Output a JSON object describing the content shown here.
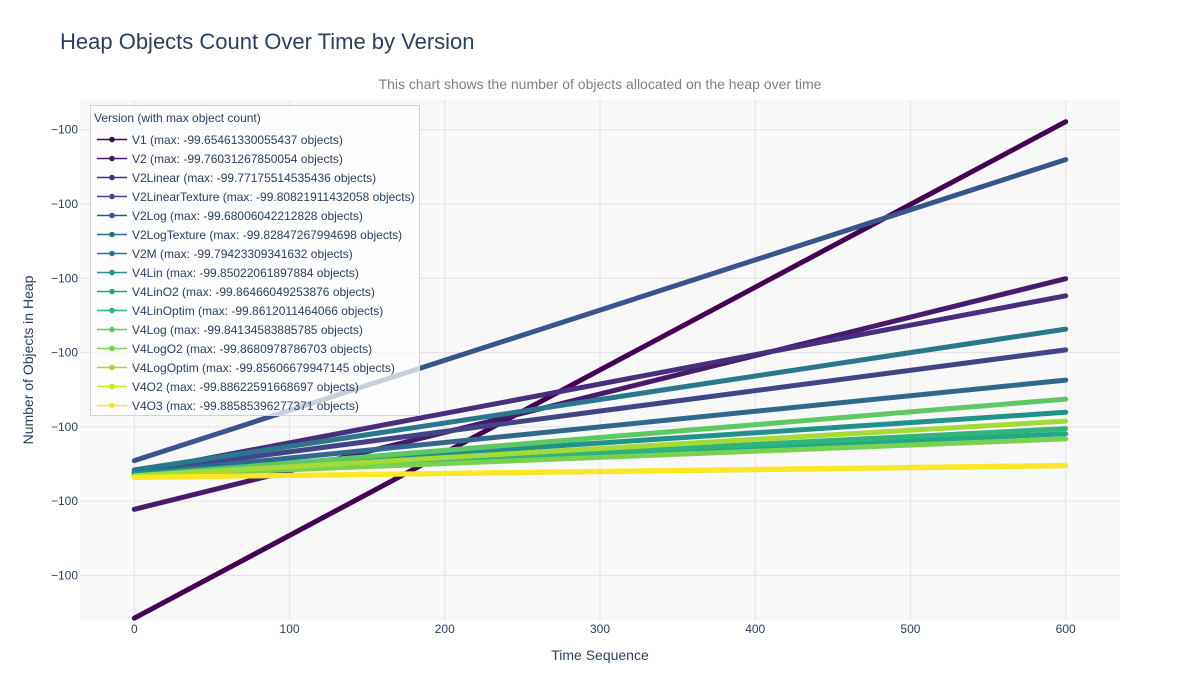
{
  "chart_data": {
    "type": "line",
    "title": "Heap Objects Count Over Time by Version",
    "subtitle": "This chart shows the number of objects allocated on the heap over time",
    "xlabel": "Time Sequence",
    "ylabel": "Number of Objects in Heap",
    "xlim": [
      -35,
      635
    ],
    "ylim": [
      -99.99,
      -99.64
    ],
    "x_ticks": [
      0,
      100,
      200,
      300,
      400,
      500,
      600
    ],
    "y_ticks": [
      -99.66,
      -99.71,
      -99.76,
      -99.81,
      -99.86,
      -99.91,
      -99.96
    ],
    "y_tick_labels": [
      "−100",
      "−100",
      "−100",
      "−100",
      "−100",
      "−100",
      "−100"
    ],
    "grid": true,
    "legend": {
      "title": "Version (with max object count)",
      "placement": "top-left"
    },
    "x": [
      0,
      600
    ],
    "series": [
      {
        "name": "V1 (max: -99.65461330055437 objects)",
        "color": "#440154",
        "values": [
          -99.9888,
          -99.6546
        ]
      },
      {
        "name": "V2 (max: -99.76031267850054 objects)",
        "color": "#481a6c",
        "values": [
          -99.9155,
          -99.7603
        ]
      },
      {
        "name": "V2Linear (max: -99.77175514535436 objects)",
        "color": "#472f7d",
        "values": [
          -99.8905,
          -99.7718
        ]
      },
      {
        "name": "V2LinearTexture (max: -99.80821911432058 objects)",
        "color": "#414487",
        "values": [
          -99.8905,
          -99.8082
        ]
      },
      {
        "name": "V2Log (max: -99.68006042212828 objects)",
        "color": "#39568c",
        "values": [
          -99.8827,
          -99.6801
        ]
      },
      {
        "name": "V2LogTexture (max: -99.82847267994698 objects)",
        "color": "#31688e",
        "values": [
          -99.8915,
          -99.8285
        ]
      },
      {
        "name": "V2M (max: -99.79423309341632 objects)",
        "color": "#2a788e",
        "values": [
          -99.889,
          -99.7942
        ]
      },
      {
        "name": "V4Lin (max: -99.85022061897884 objects)",
        "color": "#21918c",
        "values": [
          -99.8915,
          -99.8502
        ]
      },
      {
        "name": "V4LinO2 (max: -99.86466049253876 objects)",
        "color": "#22a884",
        "values": [
          -99.893,
          -99.8647
        ]
      },
      {
        "name": "V4LinOptim (max: -99.8612011464066 objects)",
        "color": "#2fb47c",
        "values": [
          -99.893,
          -99.8612
        ]
      },
      {
        "name": "V4Log (max: -99.84134583885785 objects)",
        "color": "#5ec962",
        "values": [
          -99.893,
          -99.8413
        ]
      },
      {
        "name": "V4LogO2 (max: -99.8680978786703 objects)",
        "color": "#7ad151",
        "values": [
          -99.893,
          -99.8681
        ]
      },
      {
        "name": "V4LogOptim (max: -99.85606679947145 objects)",
        "color": "#a5db36",
        "values": [
          -99.893,
          -99.8561
        ]
      },
      {
        "name": "V4O2 (max: -99.88622591668697 objects)",
        "color": "#d2e21b",
        "values": [
          -99.894,
          -99.8862
        ]
      },
      {
        "name": "V4O3 (max: -99.88585396277371 objects)",
        "color": "#fde725",
        "values": [
          -99.894,
          -99.8859
        ]
      }
    ]
  }
}
